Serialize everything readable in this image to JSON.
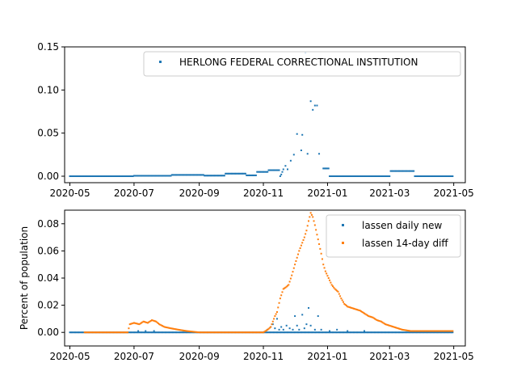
{
  "chart_data": [
    {
      "type": "scatter",
      "xaxis": "date",
      "xlim": [
        "2020-04-26",
        "2021-05-12"
      ],
      "ylim": [
        -0.0075,
        0.15
      ],
      "xticks": [
        "2020-05",
        "2020-07",
        "2020-09",
        "2020-11",
        "2021-01",
        "2021-03",
        "2021-05"
      ],
      "yticks": [
        "0.00",
        "0.05",
        "0.10",
        "0.15"
      ],
      "ylabel": "",
      "legend_position": "top-right",
      "series": [
        {
          "name": "HERLONG FEDERAL CORRECTIONAL INSTITUTION",
          "color": "#1f77b4",
          "segments": [
            {
              "from": "2020-05-01",
              "to": "2020-06-30",
              "value": 0.0
            },
            {
              "from": "2020-07-01",
              "to": "2020-08-05",
              "value": 0.0005
            },
            {
              "from": "2020-08-06",
              "to": "2020-09-05",
              "value": 0.0015
            },
            {
              "from": "2020-09-06",
              "to": "2020-09-25",
              "value": 0.0007
            },
            {
              "from": "2020-09-26",
              "to": "2020-10-15",
              "value": 0.003
            },
            {
              "from": "2020-10-16",
              "to": "2020-10-25",
              "value": 0.001
            },
            {
              "from": "2020-10-26",
              "to": "2020-11-05",
              "value": 0.005
            },
            {
              "from": "2020-11-06",
              "to": "2020-11-16",
              "value": 0.007
            },
            {
              "from": "2020-12-28",
              "to": "2021-01-02",
              "value": 0.009
            },
            {
              "from": "2021-01-03",
              "to": "2021-03-01",
              "value": 0.0
            },
            {
              "from": "2021-03-02",
              "to": "2021-03-24",
              "value": 0.006
            },
            {
              "from": "2021-03-25",
              "to": "2021-04-30",
              "value": 0.0
            }
          ],
          "points": [
            [
              "2020-11-17",
              0.0
            ],
            [
              "2020-11-18",
              0.002
            ],
            [
              "2020-11-19",
              0.005
            ],
            [
              "2020-11-20",
              0.008
            ],
            [
              "2020-11-22",
              0.012
            ],
            [
              "2020-11-24",
              0.008
            ],
            [
              "2020-11-27",
              0.018
            ],
            [
              "2020-11-30",
              0.025
            ],
            [
              "2020-12-03",
              0.049
            ],
            [
              "2020-12-07",
              0.03
            ],
            [
              "2020-12-08",
              0.048
            ],
            [
              "2020-12-11",
              0.143
            ],
            [
              "2020-12-13",
              0.026
            ],
            [
              "2020-12-16",
              0.087
            ],
            [
              "2020-12-18",
              0.077
            ],
            [
              "2020-12-20",
              0.082
            ],
            [
              "2020-12-22",
              0.082
            ],
            [
              "2020-12-24",
              0.026
            ]
          ]
        }
      ]
    },
    {
      "type": "scatter",
      "xaxis": "date",
      "xlim": [
        "2020-04-26",
        "2021-05-12"
      ],
      "ylim": [
        -0.01,
        0.09
      ],
      "xticks": [
        "2020-05",
        "2020-07",
        "2020-09",
        "2020-11",
        "2021-01",
        "2021-03",
        "2021-05"
      ],
      "yticks": [
        "0.00",
        "0.02",
        "0.04",
        "0.06",
        "0.08"
      ],
      "ylabel": "Percent of population",
      "legend_position": "top-right",
      "series": [
        {
          "name": "lassen daily new",
          "color": "#1f77b4",
          "baseline": {
            "from": "2020-05-01",
            "to": "2021-04-30",
            "value": 0.0
          },
          "points": [
            [
              "2020-07-05",
              0.001
            ],
            [
              "2020-07-12",
              0.001
            ],
            [
              "2020-07-20",
              0.001
            ],
            [
              "2020-11-05",
              0.002
            ],
            [
              "2020-11-08",
              0.004
            ],
            [
              "2020-11-10",
              0.006
            ],
            [
              "2020-11-12",
              0.003
            ],
            [
              "2020-11-14",
              0.01
            ],
            [
              "2020-11-16",
              0.002
            ],
            [
              "2020-11-18",
              0.004
            ],
            [
              "2020-11-20",
              0.002
            ],
            [
              "2020-11-23",
              0.005
            ],
            [
              "2020-11-26",
              0.003
            ],
            [
              "2020-11-29",
              0.002
            ],
            [
              "2020-12-01",
              0.012
            ],
            [
              "2020-12-03",
              0.005
            ],
            [
              "2020-12-05",
              0.002
            ],
            [
              "2020-12-08",
              0.013
            ],
            [
              "2020-12-10",
              0.003
            ],
            [
              "2020-12-12",
              0.006
            ],
            [
              "2020-12-14",
              0.018
            ],
            [
              "2020-12-16",
              0.005
            ],
            [
              "2020-12-20",
              0.002
            ],
            [
              "2020-12-23",
              0.012
            ],
            [
              "2020-12-26",
              0.002
            ],
            [
              "2021-01-03",
              0.001
            ],
            [
              "2021-01-10",
              0.002
            ],
            [
              "2021-01-20",
              0.001
            ],
            [
              "2021-02-05",
              0.001
            ]
          ]
        },
        {
          "name": "lassen 14-day diff",
          "color": "#ff7f0e",
          "points": [
            [
              "2020-05-15",
              0.0
            ],
            [
              "2020-06-01",
              0.0
            ],
            [
              "2020-06-15",
              0.0
            ],
            [
              "2020-06-25",
              0.0
            ],
            [
              "2020-06-27",
              0.006
            ],
            [
              "2020-07-01",
              0.007
            ],
            [
              "2020-07-06",
              0.006
            ],
            [
              "2020-07-10",
              0.008
            ],
            [
              "2020-07-14",
              0.007
            ],
            [
              "2020-07-18",
              0.009
            ],
            [
              "2020-07-22",
              0.008
            ],
            [
              "2020-07-25",
              0.006
            ],
            [
              "2020-07-30",
              0.004
            ],
            [
              "2020-08-05",
              0.003
            ],
            [
              "2020-08-12",
              0.002
            ],
            [
              "2020-08-20",
              0.001
            ],
            [
              "2020-09-01",
              0.0
            ],
            [
              "2020-10-01",
              0.0
            ],
            [
              "2020-11-01",
              0.0
            ],
            [
              "2020-11-05",
              0.002
            ],
            [
              "2020-11-08",
              0.004
            ],
            [
              "2020-11-10",
              0.008
            ],
            [
              "2020-11-12",
              0.012
            ],
            [
              "2020-11-14",
              0.015
            ],
            [
              "2020-11-17",
              0.025
            ],
            [
              "2020-11-20",
              0.032
            ],
            [
              "2020-11-22",
              0.033
            ],
            [
              "2020-11-25",
              0.035
            ],
            [
              "2020-11-28",
              0.042
            ],
            [
              "2020-12-01",
              0.05
            ],
            [
              "2020-12-03",
              0.055
            ],
            [
              "2020-12-05",
              0.06
            ],
            [
              "2020-12-07",
              0.064
            ],
            [
              "2020-12-10",
              0.07
            ],
            [
              "2020-12-12",
              0.075
            ],
            [
              "2020-12-14",
              0.082
            ],
            [
              "2020-12-16",
              0.088
            ],
            [
              "2020-12-18",
              0.085
            ],
            [
              "2020-12-20",
              0.079
            ],
            [
              "2020-12-22",
              0.072
            ],
            [
              "2020-12-24",
              0.065
            ],
            [
              "2020-12-26",
              0.058
            ],
            [
              "2020-12-28",
              0.05
            ],
            [
              "2020-12-30",
              0.045
            ],
            [
              "2021-01-02",
              0.04
            ],
            [
              "2021-01-05",
              0.035
            ],
            [
              "2021-01-08",
              0.032
            ],
            [
              "2021-01-11",
              0.03
            ],
            [
              "2021-01-14",
              0.025
            ],
            [
              "2021-01-17",
              0.021
            ],
            [
              "2021-01-20",
              0.019
            ],
            [
              "2021-01-24",
              0.018
            ],
            [
              "2021-01-28",
              0.017
            ],
            [
              "2021-02-01",
              0.016
            ],
            [
              "2021-02-05",
              0.014
            ],
            [
              "2021-02-09",
              0.012
            ],
            [
              "2021-02-13",
              0.011
            ],
            [
              "2021-02-17",
              0.009
            ],
            [
              "2021-02-21",
              0.008
            ],
            [
              "2021-02-25",
              0.006
            ],
            [
              "2021-03-01",
              0.005
            ],
            [
              "2021-03-05",
              0.004
            ],
            [
              "2021-03-09",
              0.003
            ],
            [
              "2021-03-13",
              0.002
            ],
            [
              "2021-03-17",
              0.0015
            ],
            [
              "2021-03-21",
              0.001
            ],
            [
              "2021-03-25",
              0.001
            ],
            [
              "2021-04-01",
              0.001
            ],
            [
              "2021-04-10",
              0.001
            ],
            [
              "2021-04-20",
              0.001
            ],
            [
              "2021-04-30",
              0.001
            ]
          ]
        }
      ]
    }
  ]
}
